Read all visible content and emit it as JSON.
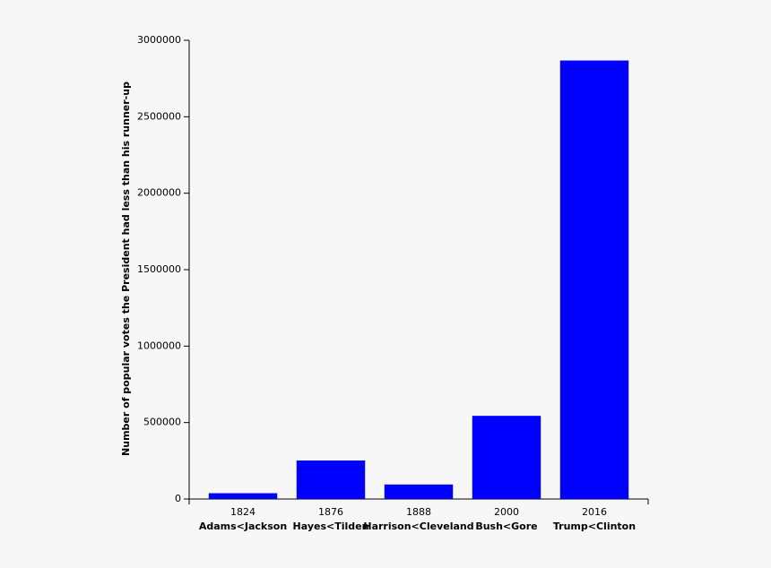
{
  "chart_data": {
    "type": "bar",
    "y_label": "Number of popular votes the President had less than his runner-up",
    "categories": [
      "1824",
      "1876",
      "1888",
      "2000",
      "2016"
    ],
    "category_labels": [
      "Adams<Jackson",
      "Hayes<Tilden",
      "Harrison<Cleveland",
      "Bush<Gore",
      "Trump<Clinton"
    ],
    "values": [
      38000,
      252000,
      95000,
      544000,
      2868000
    ],
    "color": "#0000ff",
    "ylim": [
      0,
      3000000
    ],
    "yticks": [
      0,
      500000,
      1000000,
      1500000,
      2000000,
      2500000,
      3000000
    ],
    "grid": false
  }
}
